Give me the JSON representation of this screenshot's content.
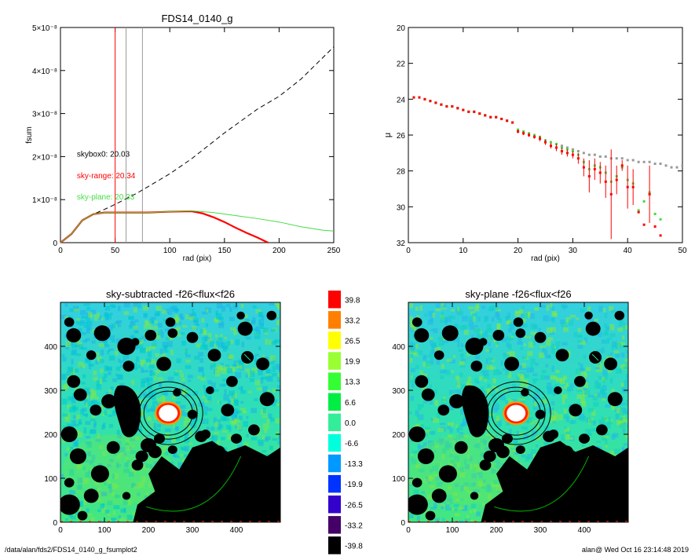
{
  "footer": {
    "left": "/data/alan/fds2/FDS14_0140_g_fsumplot2",
    "right": "alan@  Wed Oct 16 23:14:48 2019"
  },
  "colors": {
    "sky_range": "#ff0000",
    "sky_plane": "#44dd44",
    "skybox": "#000000"
  },
  "chart_data": [
    {
      "id": "fsum",
      "type": "line",
      "title": "FDS14_0140_g",
      "xlabel": "rad (pix)",
      "ylabel": "fsum",
      "xlim": [
        0,
        250
      ],
      "ylim": [
        0,
        5e-08
      ],
      "xticks": [
        "0",
        "50",
        "100",
        "150",
        "200",
        "250"
      ],
      "yticks": [
        "0",
        "1×10⁻⁸",
        "2×10⁻⁸",
        "3×10⁻⁸",
        "4×10⁻⁸",
        "5×10⁻⁸"
      ],
      "vlines": [
        {
          "x": 50,
          "color": "#ff0000"
        },
        {
          "x": 60,
          "color": "#999999"
        },
        {
          "x": 75,
          "color": "#999999"
        }
      ],
      "annotations": [
        {
          "text": "skybox0: 20.03",
          "color": "#000000"
        },
        {
          "text": "sky-range: 20.34",
          "color": "#ff0000"
        },
        {
          "text": "sky-plane: 20.33",
          "color": "#44dd44"
        }
      ],
      "series": [
        {
          "style": "dashed",
          "color": "#000000",
          "x": [
            0,
            10,
            20,
            30,
            40,
            50,
            60,
            70,
            80,
            100,
            120,
            150,
            180,
            200,
            220,
            250
          ],
          "y": [
            0,
            2e-09,
            5.2e-09,
            6.6e-09,
            7.7e-09,
            8.9e-09,
            1.02e-08,
            1.15e-08,
            1.3e-08,
            1.6e-08,
            1.95e-08,
            2.55e-08,
            3.1e-08,
            3.4e-08,
            3.8e-08,
            4.55e-08
          ]
        },
        {
          "style": "solid",
          "color": "#ff0000",
          "x": [
            0,
            10,
            20,
            30,
            40,
            60,
            80,
            100,
            120,
            130,
            140,
            150,
            160,
            170,
            180,
            190
          ],
          "y": [
            0,
            2e-09,
            5.2e-09,
            6.6e-09,
            7e-09,
            7e-09,
            7e-09,
            7.2e-09,
            7.3e-09,
            6.8e-09,
            5.9e-09,
            4.8e-09,
            3.5e-09,
            2.3e-09,
            1.2e-09,
            0
          ]
        },
        {
          "style": "solid",
          "color": "#44dd44",
          "x": [
            0,
            10,
            20,
            30,
            40,
            60,
            80,
            100,
            120,
            140,
            160,
            180,
            200,
            220,
            240,
            250
          ],
          "y": [
            0,
            2e-09,
            5.2e-09,
            6.6e-09,
            7e-09,
            7e-09,
            7e-09,
            7.2e-09,
            7.4e-09,
            7e-09,
            6.3e-09,
            5.6e-09,
            4.8e-09,
            3.7e-09,
            2.9e-09,
            2.7e-09
          ]
        }
      ]
    },
    {
      "id": "mu",
      "type": "scatter",
      "xlabel": "rad (pix)",
      "ylabel": "μ",
      "xlim": [
        0,
        50
      ],
      "ylim": [
        32,
        20
      ],
      "xticks": [
        "0",
        "10",
        "20",
        "30",
        "40",
        "50"
      ],
      "yticks": [
        "20",
        "22",
        "24",
        "26",
        "28",
        "30",
        "32"
      ],
      "series": [
        {
          "color": "#999999",
          "marker": "square",
          "x": [
            1,
            2,
            3,
            4,
            5,
            6,
            7,
            8,
            9,
            10,
            11,
            12,
            13,
            14,
            15,
            16,
            17,
            18,
            19,
            20,
            21,
            22,
            23,
            24,
            25,
            26,
            27,
            28,
            29,
            30,
            31,
            32,
            33,
            34,
            35,
            36,
            37,
            38,
            39,
            40,
            41,
            42,
            43,
            44,
            45,
            46,
            47,
            48,
            49,
            50
          ],
          "y": [
            23.9,
            23.9,
            24.0,
            24.1,
            24.2,
            24.3,
            24.4,
            24.4,
            24.5,
            24.6,
            24.7,
            24.7,
            24.8,
            24.9,
            25.0,
            25.0,
            25.1,
            25.2,
            25.3,
            25.8,
            25.9,
            26.0,
            26.1,
            26.2,
            26.3,
            26.4,
            26.5,
            26.6,
            26.7,
            26.8,
            26.9,
            27.0,
            27.1,
            27.1,
            27.2,
            27.2,
            27.3,
            27.3,
            27.3,
            27.4,
            27.4,
            27.5,
            27.5,
            27.5,
            27.6,
            27.6,
            27.7,
            27.8,
            27.8,
            27.7
          ]
        },
        {
          "color": "#ff0000",
          "marker": "square",
          "x": [
            1,
            2,
            3,
            4,
            5,
            6,
            7,
            8,
            9,
            10,
            11,
            12,
            13,
            14,
            15,
            16,
            17,
            18,
            19,
            20,
            21,
            22,
            23,
            24,
            25,
            26,
            27,
            28,
            29,
            30,
            31,
            32,
            33,
            34,
            35,
            36,
            37,
            38,
            39,
            40,
            41,
            42,
            43,
            44,
            45,
            46
          ],
          "y": [
            23.9,
            23.9,
            24.0,
            24.1,
            24.2,
            24.3,
            24.4,
            24.4,
            24.5,
            24.6,
            24.7,
            24.7,
            24.8,
            24.9,
            25.0,
            25.0,
            25.1,
            25.2,
            25.3,
            25.8,
            25.9,
            26.0,
            26.1,
            26.2,
            26.4,
            26.6,
            26.7,
            26.9,
            27.0,
            27.1,
            27.3,
            27.8,
            28.3,
            27.9,
            28.1,
            28.6,
            29.3,
            28.5,
            27.7,
            28.9,
            28.9,
            30.3,
            31.0,
            29.3,
            31.1,
            31.6
          ],
          "err": [
            0,
            0,
            0,
            0,
            0,
            0,
            0,
            0,
            0,
            0,
            0,
            0,
            0,
            0,
            0,
            0,
            0,
            0,
            0,
            0.1,
            0.1,
            0.1,
            0.1,
            0.15,
            0.15,
            0.15,
            0.2,
            0.2,
            0.2,
            0.2,
            0.3,
            0.5,
            0.9,
            0.6,
            0.6,
            0.9,
            2.5,
            0.8,
            0.3,
            1.2,
            1.0,
            0,
            0,
            1.6,
            0,
            0
          ]
        },
        {
          "color": "#44dd44",
          "marker": "square",
          "x": [
            1,
            2,
            3,
            4,
            5,
            6,
            7,
            8,
            9,
            10,
            11,
            12,
            13,
            14,
            15,
            16,
            17,
            18,
            19,
            20,
            21,
            22,
            23,
            24,
            25,
            26,
            27,
            28,
            29,
            30,
            31,
            32,
            33,
            34,
            35,
            36,
            37,
            38,
            39,
            40,
            41,
            42,
            43,
            44,
            45,
            46
          ],
          "y": [
            23.9,
            23.9,
            24.0,
            24.1,
            24.2,
            24.3,
            24.4,
            24.4,
            24.5,
            24.6,
            24.7,
            24.7,
            24.8,
            24.9,
            25.0,
            25.0,
            25.1,
            25.2,
            25.3,
            25.7,
            25.8,
            25.9,
            26.0,
            26.1,
            26.3,
            26.4,
            26.5,
            26.7,
            26.8,
            26.9,
            27.1,
            27.5,
            27.9,
            27.7,
            27.8,
            28.1,
            28.6,
            28.3,
            27.8,
            28.5,
            28.7,
            30.2,
            29.7,
            29.2,
            30.4,
            30.7
          ]
        }
      ]
    },
    {
      "id": "img-sub",
      "type": "heatmap",
      "title": "sky-subtracted -f26<flux<f26",
      "xlim": [
        0,
        500
      ],
      "ylim": [
        0,
        500
      ],
      "xticks": [
        "0",
        "100",
        "200",
        "300",
        "400"
      ],
      "yticks": [
        "0",
        "100",
        "200",
        "300",
        "400"
      ]
    },
    {
      "id": "img-plane",
      "type": "heatmap",
      "title": "sky-plane -f26<flux<f26",
      "xlim": [
        0,
        500
      ],
      "ylim": [
        0,
        500
      ],
      "xticks": [
        "0",
        "100",
        "200",
        "300",
        "400"
      ],
      "yticks": [
        "0",
        "100",
        "200",
        "300",
        "400"
      ]
    },
    {
      "id": "colorbar",
      "type": "table",
      "levels": [
        "39.8",
        "33.2",
        "26.5",
        "19.9",
        "13.3",
        "6.6",
        "0.0",
        "-6.6",
        "-13.3",
        "-19.9",
        "-26.5",
        "-33.2",
        "-39.8"
      ],
      "colors": [
        "#ff0000",
        "#ff8000",
        "#ffff00",
        "#99ff33",
        "#33ff33",
        "#00ee44",
        "#33ee99",
        "#00ffdd",
        "#0099ff",
        "#0033ff",
        "#3300cc",
        "#440066",
        "#000000"
      ]
    }
  ]
}
